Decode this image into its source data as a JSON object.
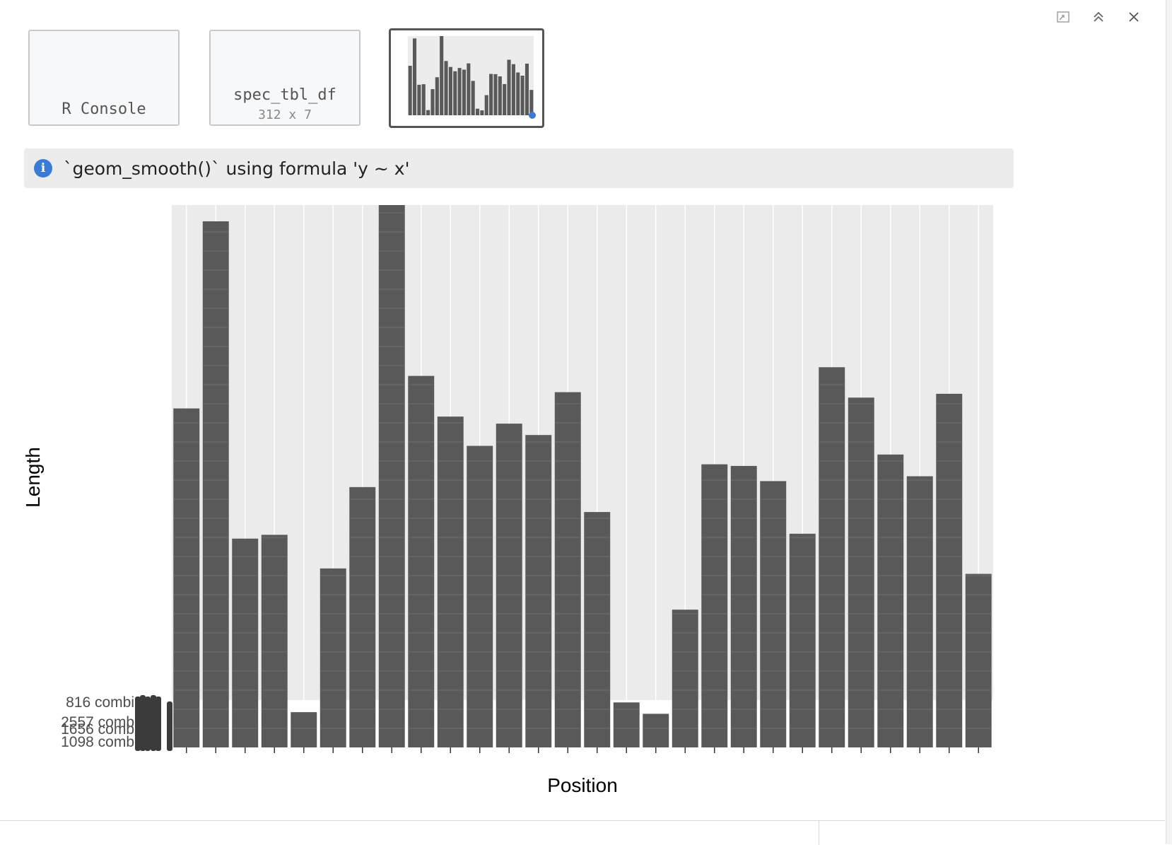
{
  "window": {
    "icons": [
      "export-icon",
      "collapse-icon",
      "close-icon"
    ]
  },
  "thumbnails": [
    {
      "label": "R Console",
      "sublabel": "",
      "active": false
    },
    {
      "label": "spec_tbl_df",
      "sublabel": "312 x 7",
      "active": false
    },
    {
      "label": "",
      "sublabel": "",
      "active": true
    }
  ],
  "notice": {
    "icon": "info-icon",
    "message": "`geom_smooth()` using formula 'y ~ x'"
  },
  "chart_data": {
    "type": "bar",
    "xlabel": "Position",
    "ylabel": "Length",
    "y_tick_labels": [
      "816 combi",
      "2557 comb",
      "1656 comb",
      "1098 comb"
    ],
    "values": [
      0.625,
      0.97,
      0.385,
      0.392,
      0.065,
      0.33,
      0.48,
      1.0,
      0.685,
      0.61,
      0.556,
      0.597,
      0.576,
      0.655,
      0.434,
      0.083,
      0.062,
      0.254,
      0.522,
      0.519,
      0.491,
      0.394,
      0.701,
      0.645,
      0.54,
      0.5,
      0.652,
      0.32
    ],
    "ylim": [
      0,
      1
    ],
    "bar_color": "#595959",
    "panel_color": "#ebebeb",
    "grid": true
  }
}
